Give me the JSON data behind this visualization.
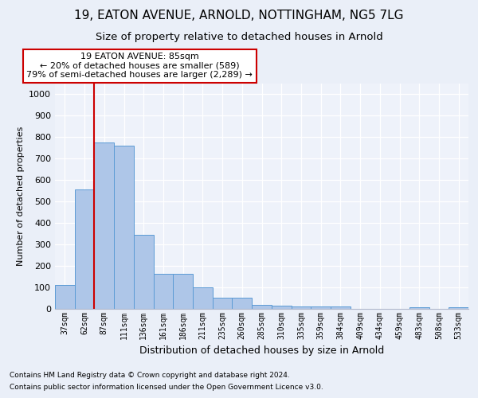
{
  "title1": "19, EATON AVENUE, ARNOLD, NOTTINGHAM, NG5 7LG",
  "title2": "Size of property relative to detached houses in Arnold",
  "xlabel": "Distribution of detached houses by size in Arnold",
  "ylabel": "Number of detached properties",
  "categories": [
    "37sqm",
    "62sqm",
    "87sqm",
    "111sqm",
    "136sqm",
    "161sqm",
    "186sqm",
    "211sqm",
    "235sqm",
    "260sqm",
    "285sqm",
    "310sqm",
    "335sqm",
    "359sqm",
    "384sqm",
    "409sqm",
    "434sqm",
    "459sqm",
    "483sqm",
    "508sqm",
    "533sqm"
  ],
  "values": [
    110,
    555,
    775,
    760,
    345,
    163,
    163,
    97,
    52,
    52,
    18,
    13,
    10,
    10,
    8,
    0,
    0,
    0,
    6,
    0,
    6
  ],
  "bar_color": "#aec6e8",
  "bar_edge_color": "#5b9bd5",
  "red_line_index": 2,
  "annotation_text": "19 EATON AVENUE: 85sqm\n← 20% of detached houses are smaller (589)\n79% of semi-detached houses are larger (2,289) →",
  "annotation_box_color": "#ffffff",
  "annotation_box_edge": "#cc0000",
  "footnote1": "Contains HM Land Registry data © Crown copyright and database right 2024.",
  "footnote2": "Contains public sector information licensed under the Open Government Licence v3.0.",
  "ylim": [
    0,
    1050
  ],
  "yticks": [
    0,
    100,
    200,
    300,
    400,
    500,
    600,
    700,
    800,
    900,
    1000
  ],
  "bg_color": "#eaeff8",
  "plot_bg_color": "#eef2fa",
  "grid_color": "#ffffff",
  "title1_fontsize": 11,
  "title2_fontsize": 9.5
}
